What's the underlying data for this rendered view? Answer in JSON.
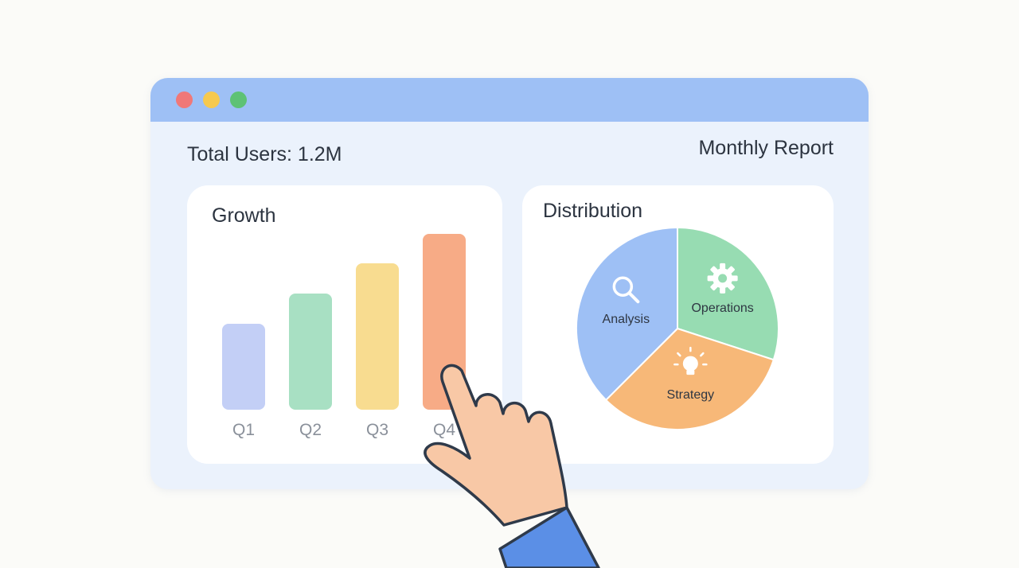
{
  "window": {
    "controls": [
      {
        "name": "close-control",
        "color": "#f07878"
      },
      {
        "name": "minimize-control",
        "color": "#f6c94e"
      },
      {
        "name": "maximize-control",
        "color": "#5ec275"
      }
    ]
  },
  "header": {
    "total_users": "Total Users: 1.2M",
    "report_title": "Monthly Report"
  },
  "growth": {
    "title": "Growth"
  },
  "distribution": {
    "title": "Distribution"
  },
  "chart_data": [
    {
      "type": "bar",
      "title": "Growth",
      "categories": [
        "Q1",
        "Q2",
        "Q3",
        "Q4"
      ],
      "values": [
        1,
        1.35,
        1.7,
        2.05
      ],
      "colors": [
        "#c3cff6",
        "#a8e0c3",
        "#f8dc90",
        "#f7ab86"
      ]
    },
    {
      "type": "pie",
      "title": "Distribution",
      "slices": [
        {
          "label": "Analysis",
          "value": 37.5,
          "color": "#9ec0f5",
          "icon": "magnifier-icon"
        },
        {
          "label": "Operations",
          "value": 30,
          "color": "#97dcb2",
          "icon": "gear-icon"
        },
        {
          "label": "Strategy",
          "value": 32.5,
          "color": "#f7b878",
          "icon": "lightbulb-icon"
        }
      ]
    }
  ],
  "pointer": {
    "icon": "pointing-hand-icon",
    "skin": "#f8c8a6",
    "sleeve": "#5b8fe6"
  }
}
